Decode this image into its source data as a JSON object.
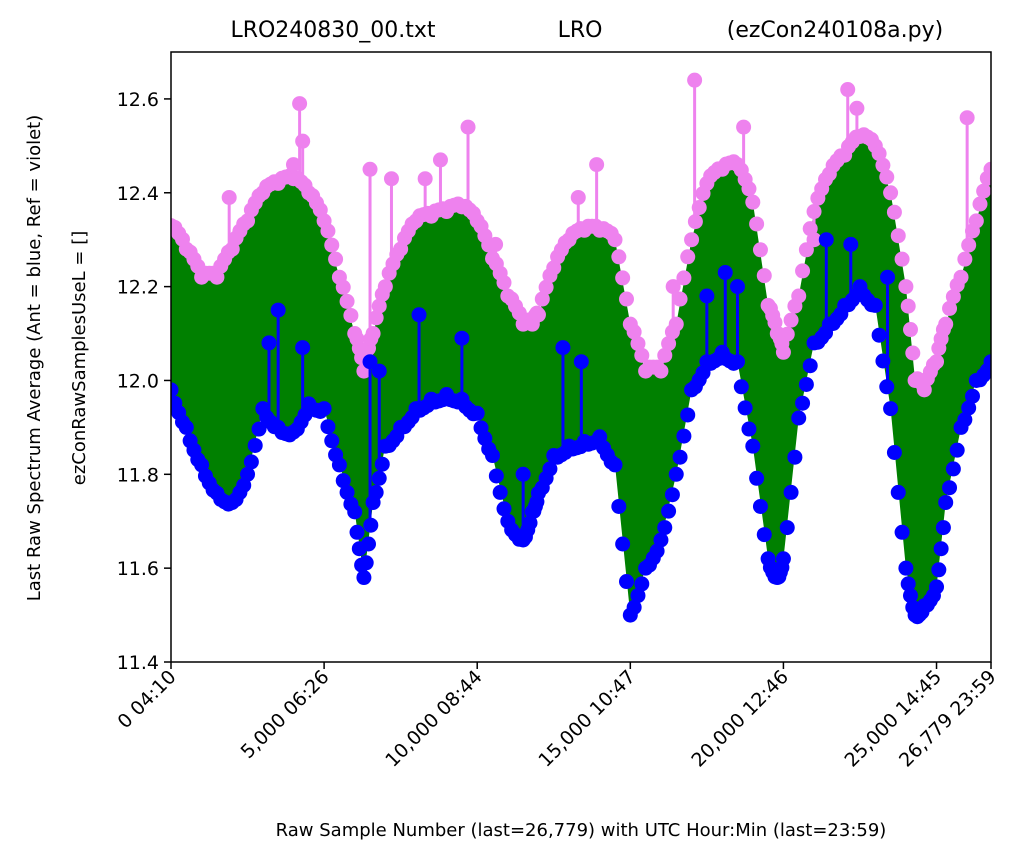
{
  "chart_data": {
    "type": "scatter",
    "title_left": "LRO240830_00.txt",
    "title_center": "LRO",
    "title_right": "(ezCon240108a.py)",
    "ylabel_outer": "Last Raw Spectrum Average   (Ant = blue, Ref = violet)",
    "ylabel_inner": "ezConRawSamplesUseL = []",
    "xlabel": "Raw Sample Number (last=26,779) with UTC Hour:Min (last=23:59)",
    "xlim": [
      0,
      26779
    ],
    "ylim": [
      11.4,
      12.7
    ],
    "yticks": [
      {
        "value": 11.4,
        "label": "11.4"
      },
      {
        "value": 11.6,
        "label": "11.6"
      },
      {
        "value": 11.8,
        "label": "11.8"
      },
      {
        "value": 12.0,
        "label": "12.0"
      },
      {
        "value": 12.2,
        "label": "12.2"
      },
      {
        "value": 12.4,
        "label": "12.4"
      },
      {
        "value": 12.6,
        "label": "12.6"
      }
    ],
    "xticks": [
      {
        "value": 0,
        "label": "0  04:10"
      },
      {
        "value": 5000,
        "label": "5,000  06:26"
      },
      {
        "value": 10000,
        "label": "10,000  08:44"
      },
      {
        "value": 15000,
        "label": "15,000  10:47"
      },
      {
        "value": 20000,
        "label": "20,000  12:46"
      },
      {
        "value": 25000,
        "label": "25,000  14:45"
      },
      {
        "value": 26779,
        "label": "26,779  23:59"
      }
    ],
    "fill_color": "#008000",
    "series": [
      {
        "name": "Ref",
        "color": "#ee82ee",
        "x": [
          0,
          500,
          1000,
          1500,
          2000,
          2500,
          3000,
          3500,
          4000,
          4500,
          5000,
          5500,
          6000,
          6300,
          6600,
          7000,
          7500,
          8000,
          8500,
          9000,
          9500,
          10000,
          10500,
          11000,
          11500,
          11800,
          12000,
          12500,
          13000,
          13500,
          14000,
          14500,
          15000,
          15500,
          16000,
          16500,
          17000,
          17500,
          18000,
          18500,
          19000,
          19500,
          19800,
          20000,
          20500,
          21000,
          21500,
          22000,
          22500,
          23000,
          23500,
          24000,
          24300,
          24600,
          25000,
          25300,
          25800,
          26300,
          26779
        ],
        "values": [
          12.33,
          12.28,
          12.22,
          12.22,
          12.28,
          12.34,
          12.4,
          12.42,
          12.43,
          12.4,
          12.34,
          12.22,
          12.1,
          12.02,
          12.1,
          12.2,
          12.28,
          12.34,
          12.35,
          12.36,
          12.37,
          12.34,
          12.26,
          12.18,
          12.12,
          12.12,
          12.14,
          12.24,
          12.3,
          12.32,
          12.32,
          12.3,
          12.12,
          12.02,
          12.02,
          12.12,
          12.3,
          12.42,
          12.45,
          12.46,
          12.38,
          12.16,
          12.1,
          12.06,
          12.18,
          12.36,
          12.44,
          12.48,
          12.52,
          12.5,
          12.4,
          12.2,
          12.0,
          11.98,
          12.04,
          12.12,
          12.22,
          12.34,
          12.45
        ]
      },
      {
        "name": "Ant",
        "color": "#0000ff",
        "x": [
          0,
          500,
          1000,
          1500,
          2000,
          2500,
          3000,
          3500,
          4000,
          4500,
          5000,
          5500,
          6000,
          6300,
          6600,
          7000,
          7500,
          8000,
          8500,
          9000,
          9500,
          10000,
          10500,
          11000,
          11500,
          11800,
          12000,
          12500,
          13000,
          13500,
          14000,
          14500,
          15000,
          15500,
          16000,
          16500,
          17000,
          17500,
          18000,
          18500,
          19000,
          19500,
          19800,
          20000,
          20500,
          21000,
          21500,
          22000,
          22500,
          23000,
          23500,
          24000,
          24300,
          24600,
          25000,
          25300,
          25800,
          26300,
          26779
        ],
        "values": [
          11.98,
          11.9,
          11.82,
          11.76,
          11.74,
          11.8,
          11.94,
          11.9,
          11.89,
          11.95,
          11.94,
          11.82,
          11.72,
          11.58,
          11.74,
          11.86,
          11.9,
          11.94,
          11.96,
          11.97,
          11.96,
          11.93,
          11.84,
          11.7,
          11.66,
          11.72,
          11.76,
          11.84,
          11.86,
          11.87,
          11.88,
          11.82,
          11.5,
          11.6,
          11.66,
          11.8,
          11.98,
          12.04,
          12.06,
          12.04,
          11.86,
          11.62,
          11.58,
          11.62,
          11.92,
          12.08,
          12.12,
          12.16,
          12.2,
          12.16,
          11.94,
          11.6,
          11.5,
          11.52,
          11.56,
          11.74,
          11.9,
          12.0,
          12.04
        ]
      }
    ],
    "ref_spikes": [
      {
        "x": 1900,
        "value": 12.39
      },
      {
        "x": 4200,
        "value": 12.59
      },
      {
        "x": 4300,
        "value": 12.51
      },
      {
        "x": 4000,
        "value": 12.46
      },
      {
        "x": 6500,
        "value": 12.45
      },
      {
        "x": 7200,
        "value": 12.43
      },
      {
        "x": 8300,
        "value": 12.43
      },
      {
        "x": 8800,
        "value": 12.47
      },
      {
        "x": 9700,
        "value": 12.54
      },
      {
        "x": 10600,
        "value": 12.29
      },
      {
        "x": 13300,
        "value": 12.39
      },
      {
        "x": 13900,
        "value": 12.46
      },
      {
        "x": 16400,
        "value": 12.2
      },
      {
        "x": 17100,
        "value": 12.64
      },
      {
        "x": 18700,
        "value": 12.54
      },
      {
        "x": 21000,
        "value": 12.3
      },
      {
        "x": 22100,
        "value": 12.62
      },
      {
        "x": 22400,
        "value": 12.58
      },
      {
        "x": 26000,
        "value": 12.56
      }
    ],
    "ant_spikes": [
      {
        "x": 3200,
        "value": 12.08
      },
      {
        "x": 3500,
        "value": 12.15
      },
      {
        "x": 4300,
        "value": 12.07
      },
      {
        "x": 6500,
        "value": 12.04
      },
      {
        "x": 6800,
        "value": 12.02
      },
      {
        "x": 8100,
        "value": 12.14
      },
      {
        "x": 9500,
        "value": 12.09
      },
      {
        "x": 11500,
        "value": 11.8
      },
      {
        "x": 12800,
        "value": 12.07
      },
      {
        "x": 13400,
        "value": 12.04
      },
      {
        "x": 17500,
        "value": 12.18
      },
      {
        "x": 18100,
        "value": 12.23
      },
      {
        "x": 18500,
        "value": 12.2
      },
      {
        "x": 21400,
        "value": 12.3
      },
      {
        "x": 22200,
        "value": 12.29
      },
      {
        "x": 23400,
        "value": 12.22
      }
    ]
  }
}
